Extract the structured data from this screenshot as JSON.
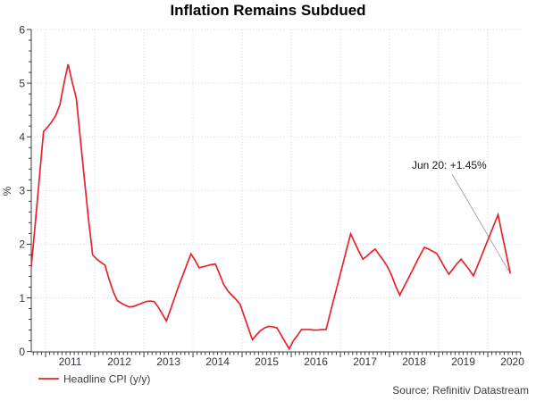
{
  "header": {
    "title": "Inflation Remains Subdued"
  },
  "legend": {
    "label": "Headline CPI (y/y)"
  },
  "source": {
    "credit": "Source: Refinitiv Datastream"
  },
  "annotation": {
    "label": "Jun 20: +1.45%"
  },
  "axes": {
    "y_label": "%"
  },
  "colors": {
    "series_red": "#e8222d",
    "grid": "#d2dacc",
    "axis": "#3c3c3c",
    "tick_text": "#33373d",
    "annotation_leader": "#a9a9a9",
    "caption_text": "#3c3c3c"
  },
  "chart_data": {
    "type": "line",
    "title": "Inflation Remains Subdued",
    "ylabel": "%",
    "ylim": [
      0,
      6
    ],
    "yticks": [
      0,
      1,
      2,
      3,
      4,
      5,
      6
    ],
    "y_minor_step": 0.2,
    "grid": "dotted",
    "legend_position": "bottom-left",
    "frequency": "monthly",
    "start": "2010-09",
    "end": "2020-06",
    "x_year_labels": [
      "2011",
      "2012",
      "2013",
      "2014",
      "2015",
      "2016",
      "2017",
      "2018",
      "2019",
      "2020"
    ],
    "series": [
      {
        "name": "Headline CPI (y/y)",
        "color": "#e8222d",
        "values": [
          1.58,
          2.4,
          3.25,
          4.1,
          4.18,
          4.28,
          4.4,
          4.6,
          5.0,
          5.35,
          5.02,
          4.72,
          3.95,
          3.2,
          2.45,
          1.8,
          1.72,
          1.66,
          1.61,
          1.35,
          1.12,
          0.95,
          0.9,
          0.86,
          0.83,
          0.84,
          0.87,
          0.9,
          0.93,
          0.94,
          0.93,
          0.83,
          0.7,
          0.57,
          0.78,
          1.0,
          1.22,
          1.42,
          1.62,
          1.82,
          1.7,
          1.56,
          1.58,
          1.6,
          1.62,
          1.63,
          1.44,
          1.25,
          1.13,
          1.05,
          0.97,
          0.88,
          0.66,
          0.44,
          0.22,
          0.31,
          0.39,
          0.44,
          0.47,
          0.46,
          0.44,
          0.31,
          0.18,
          0.05,
          0.2,
          0.3,
          0.41,
          0.41,
          0.41,
          0.4,
          0.4,
          0.41,
          0.41,
          0.71,
          1.01,
          1.3,
          1.6,
          1.9,
          2.19,
          2.03,
          1.87,
          1.72,
          1.78,
          1.85,
          1.91,
          1.8,
          1.7,
          1.58,
          1.42,
          1.22,
          1.05,
          1.2,
          1.35,
          1.5,
          1.65,
          1.8,
          1.94,
          1.91,
          1.87,
          1.83,
          1.7,
          1.56,
          1.44,
          1.54,
          1.64,
          1.72,
          1.62,
          1.52,
          1.41,
          1.6,
          1.79,
          1.98,
          2.17,
          2.36,
          2.55,
          2.18,
          1.82,
          1.45
        ]
      }
    ],
    "annotation": {
      "text": "Jun 20: +1.45%",
      "month": "2020-06",
      "value": 1.45
    }
  }
}
